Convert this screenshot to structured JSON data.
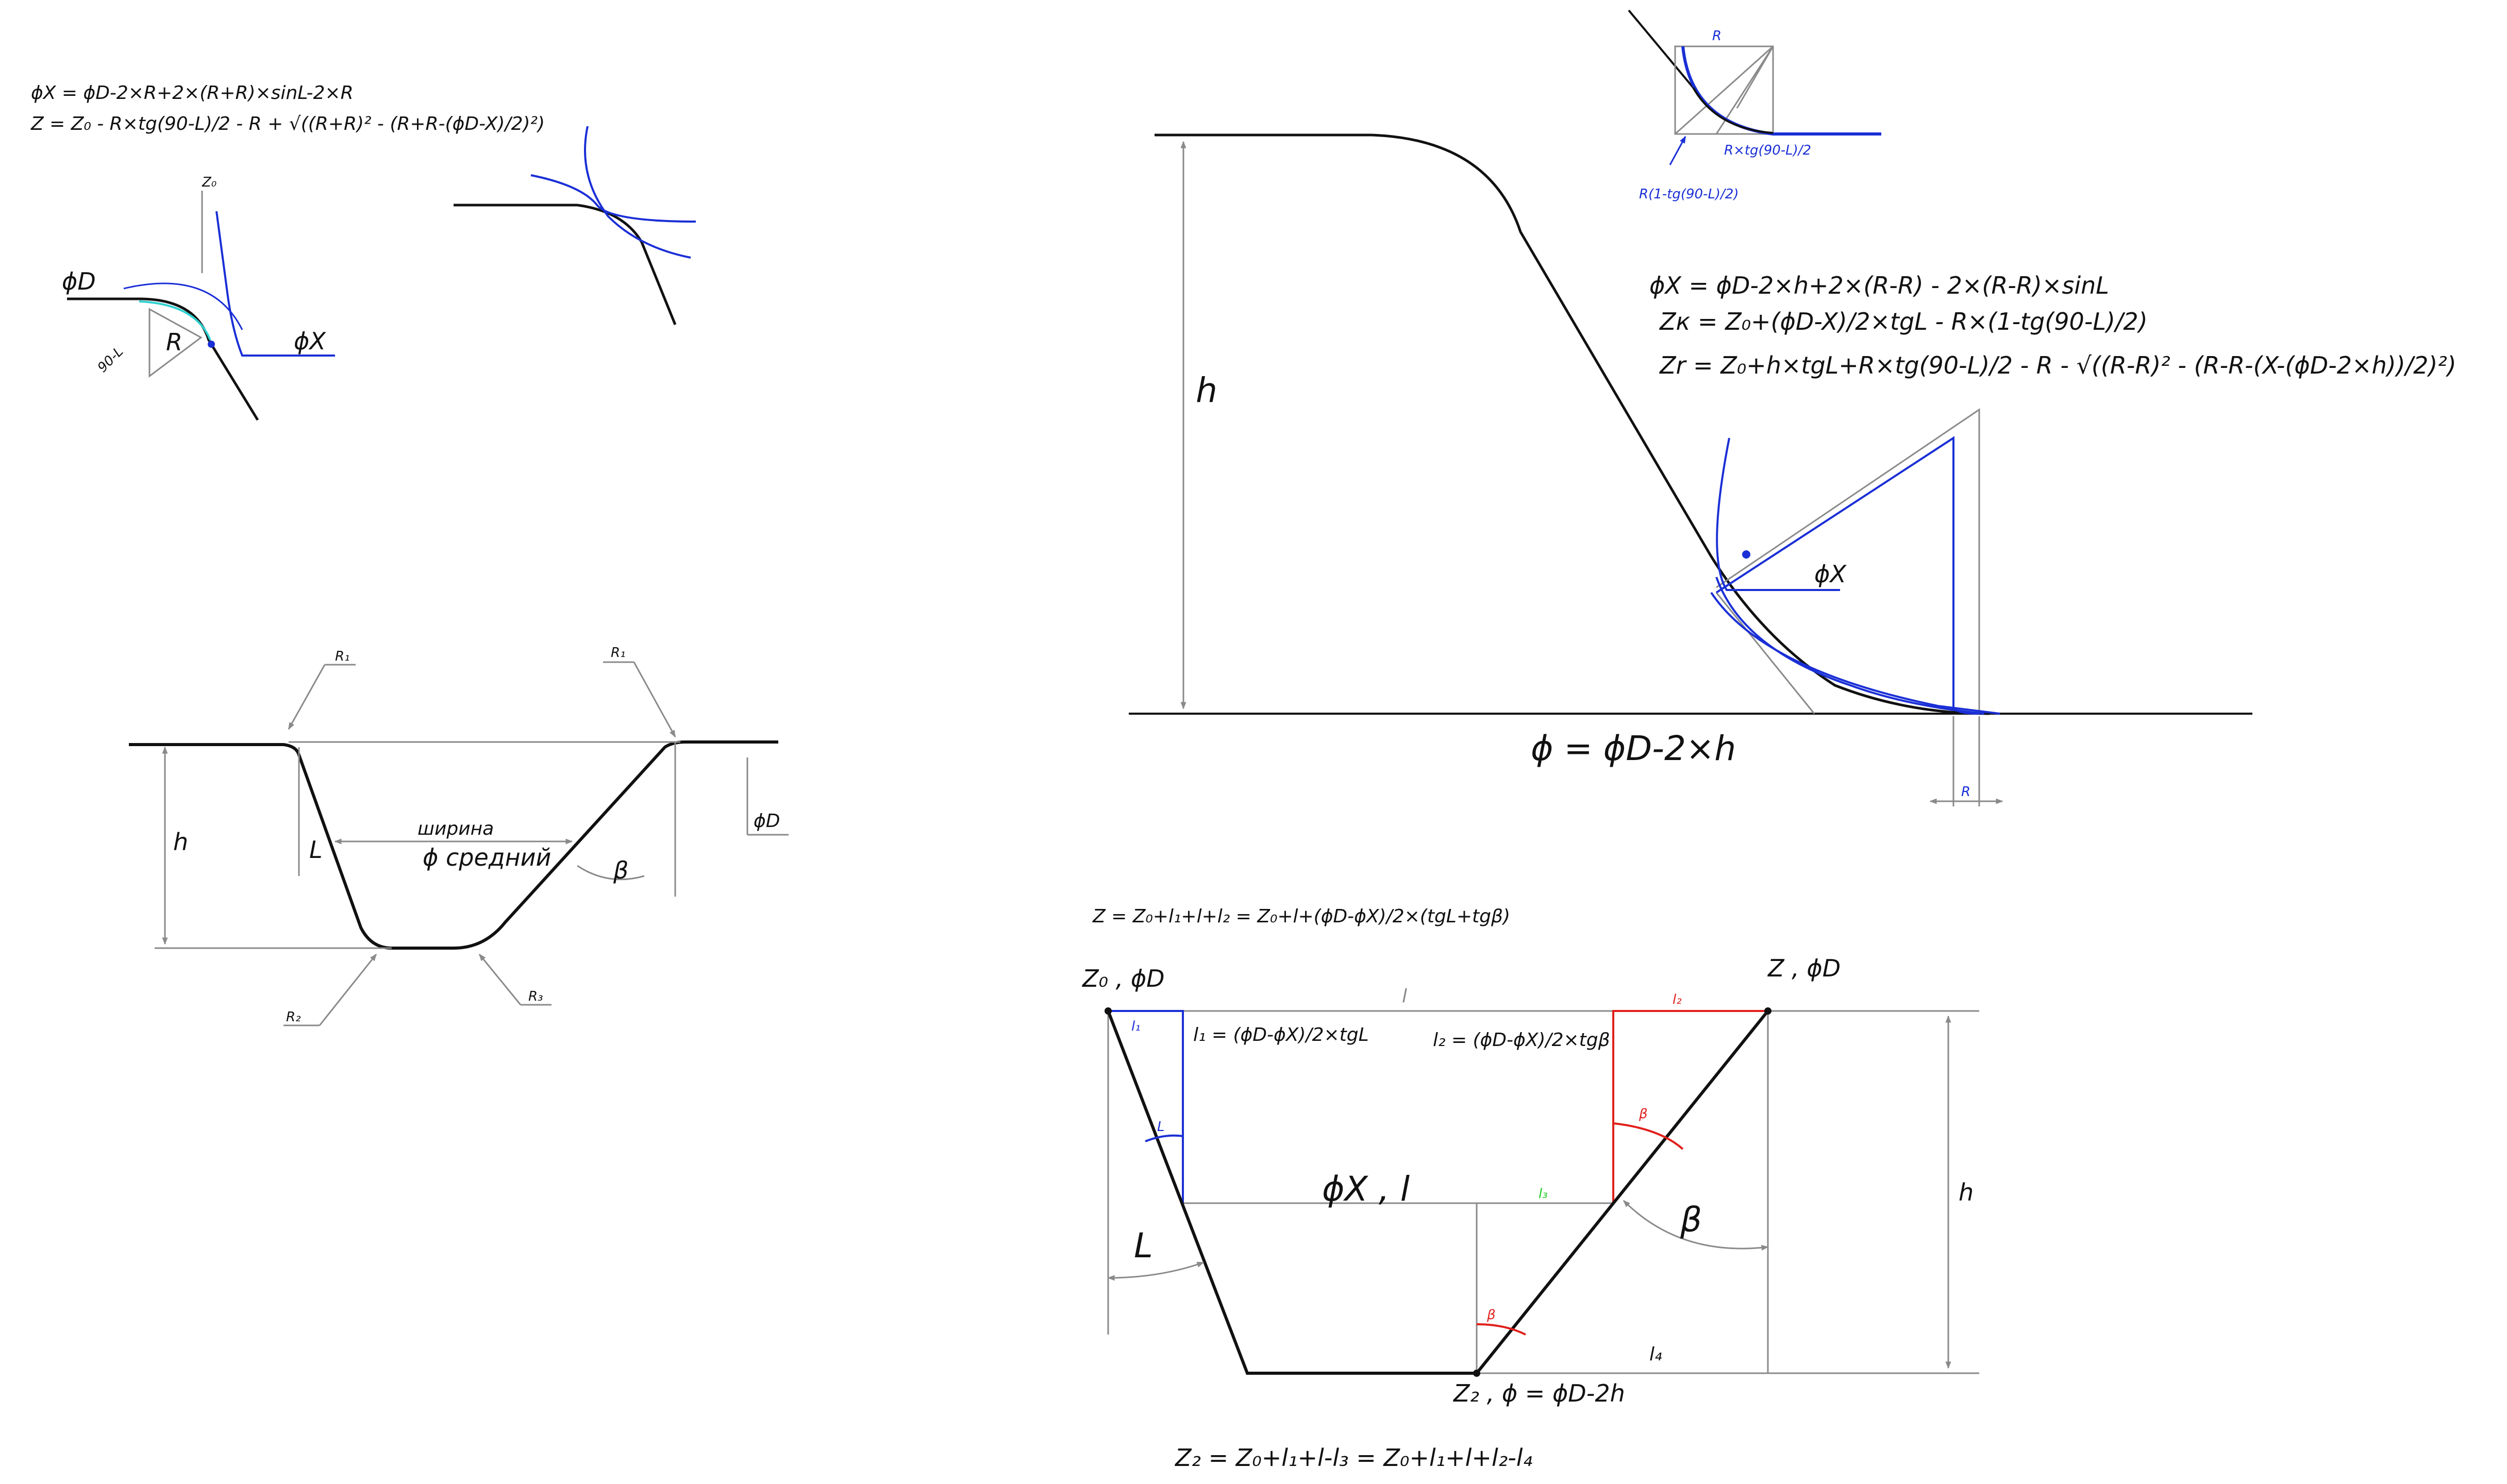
{
  "colors": {
    "ink": "#111111",
    "blue": "#1a2fd6",
    "red": "#e0201c",
    "green": "#22cc22",
    "grey": "#8a8a8a",
    "cyan": "#30d0d0"
  },
  "sketch1": {
    "formula_x": "ϕX = ϕD-2×R+2×(R+R)×sinL-2×R",
    "formula_z": "Z = Z₀ - R×tg(90-L)/2 - R + √((R+R)² - (R+R-(ϕD-X)/2)²)",
    "z0": "Z₀",
    "phi_d": "ϕD",
    "phi_x": "ϕX",
    "angle": "90-L",
    "r": "R"
  },
  "groove": {
    "r1_left": "R₁",
    "r1_right": "R₁",
    "r2": "R₂",
    "r3": "R₃",
    "h": "h",
    "width_label": "ширина",
    "phi_mid": "ϕ средний",
    "alpha": "L",
    "beta": "β",
    "phi_d": "ϕD"
  },
  "big": {
    "h": "h",
    "phi": "ϕ = ϕD-2×h",
    "phi_x": "ϕX",
    "r_dim": "R",
    "inset_r": "R",
    "inset_r_tg": "R×tg(90-L)/2",
    "inset_r1": "R(1-tg(90-L)/2)",
    "f1": "ϕX = ϕD-2×h+2×(R-R) - 2×(R-R)×sinL",
    "f2": "Zк = Z₀+(ϕD-X)/2×tgL - R×(1-tg(90-L)/2)",
    "f3": "Zr = Z₀+h×tgL+R×tg(90-L)/2 - R - √((R-R)² - (R-R-(X-(ϕD-2×h))/2)²)"
  },
  "trap": {
    "top_formula": "Z = Z₀+l₁+l+l₂ = Z₀+l+(ϕD-ϕX)/2×(tgL+tgβ)",
    "z0": "Z₀ , ϕD",
    "z": "Z , ϕD",
    "l_top": "l",
    "l1": "l₁",
    "l1_formula": "l₁ = (ϕD-ϕX)/2×tgL",
    "l2": "l₂",
    "l2_formula": "l₂ = (ϕD-ϕX)/2×tgβ",
    "phi_x_l": "ϕX , l",
    "l3": "l₃",
    "alpha_big": "L",
    "beta_big": "β",
    "alpha_small": "L",
    "beta_small": "β",
    "beta_small2": "β",
    "h": "h",
    "l4": "l₄",
    "z2": "Z₂ , ϕ = ϕD-2h",
    "bottom_formula": "Z₂ = Z₀+l₁+l-l₃ = Z₀+l₁+l+l₂-l₄"
  }
}
